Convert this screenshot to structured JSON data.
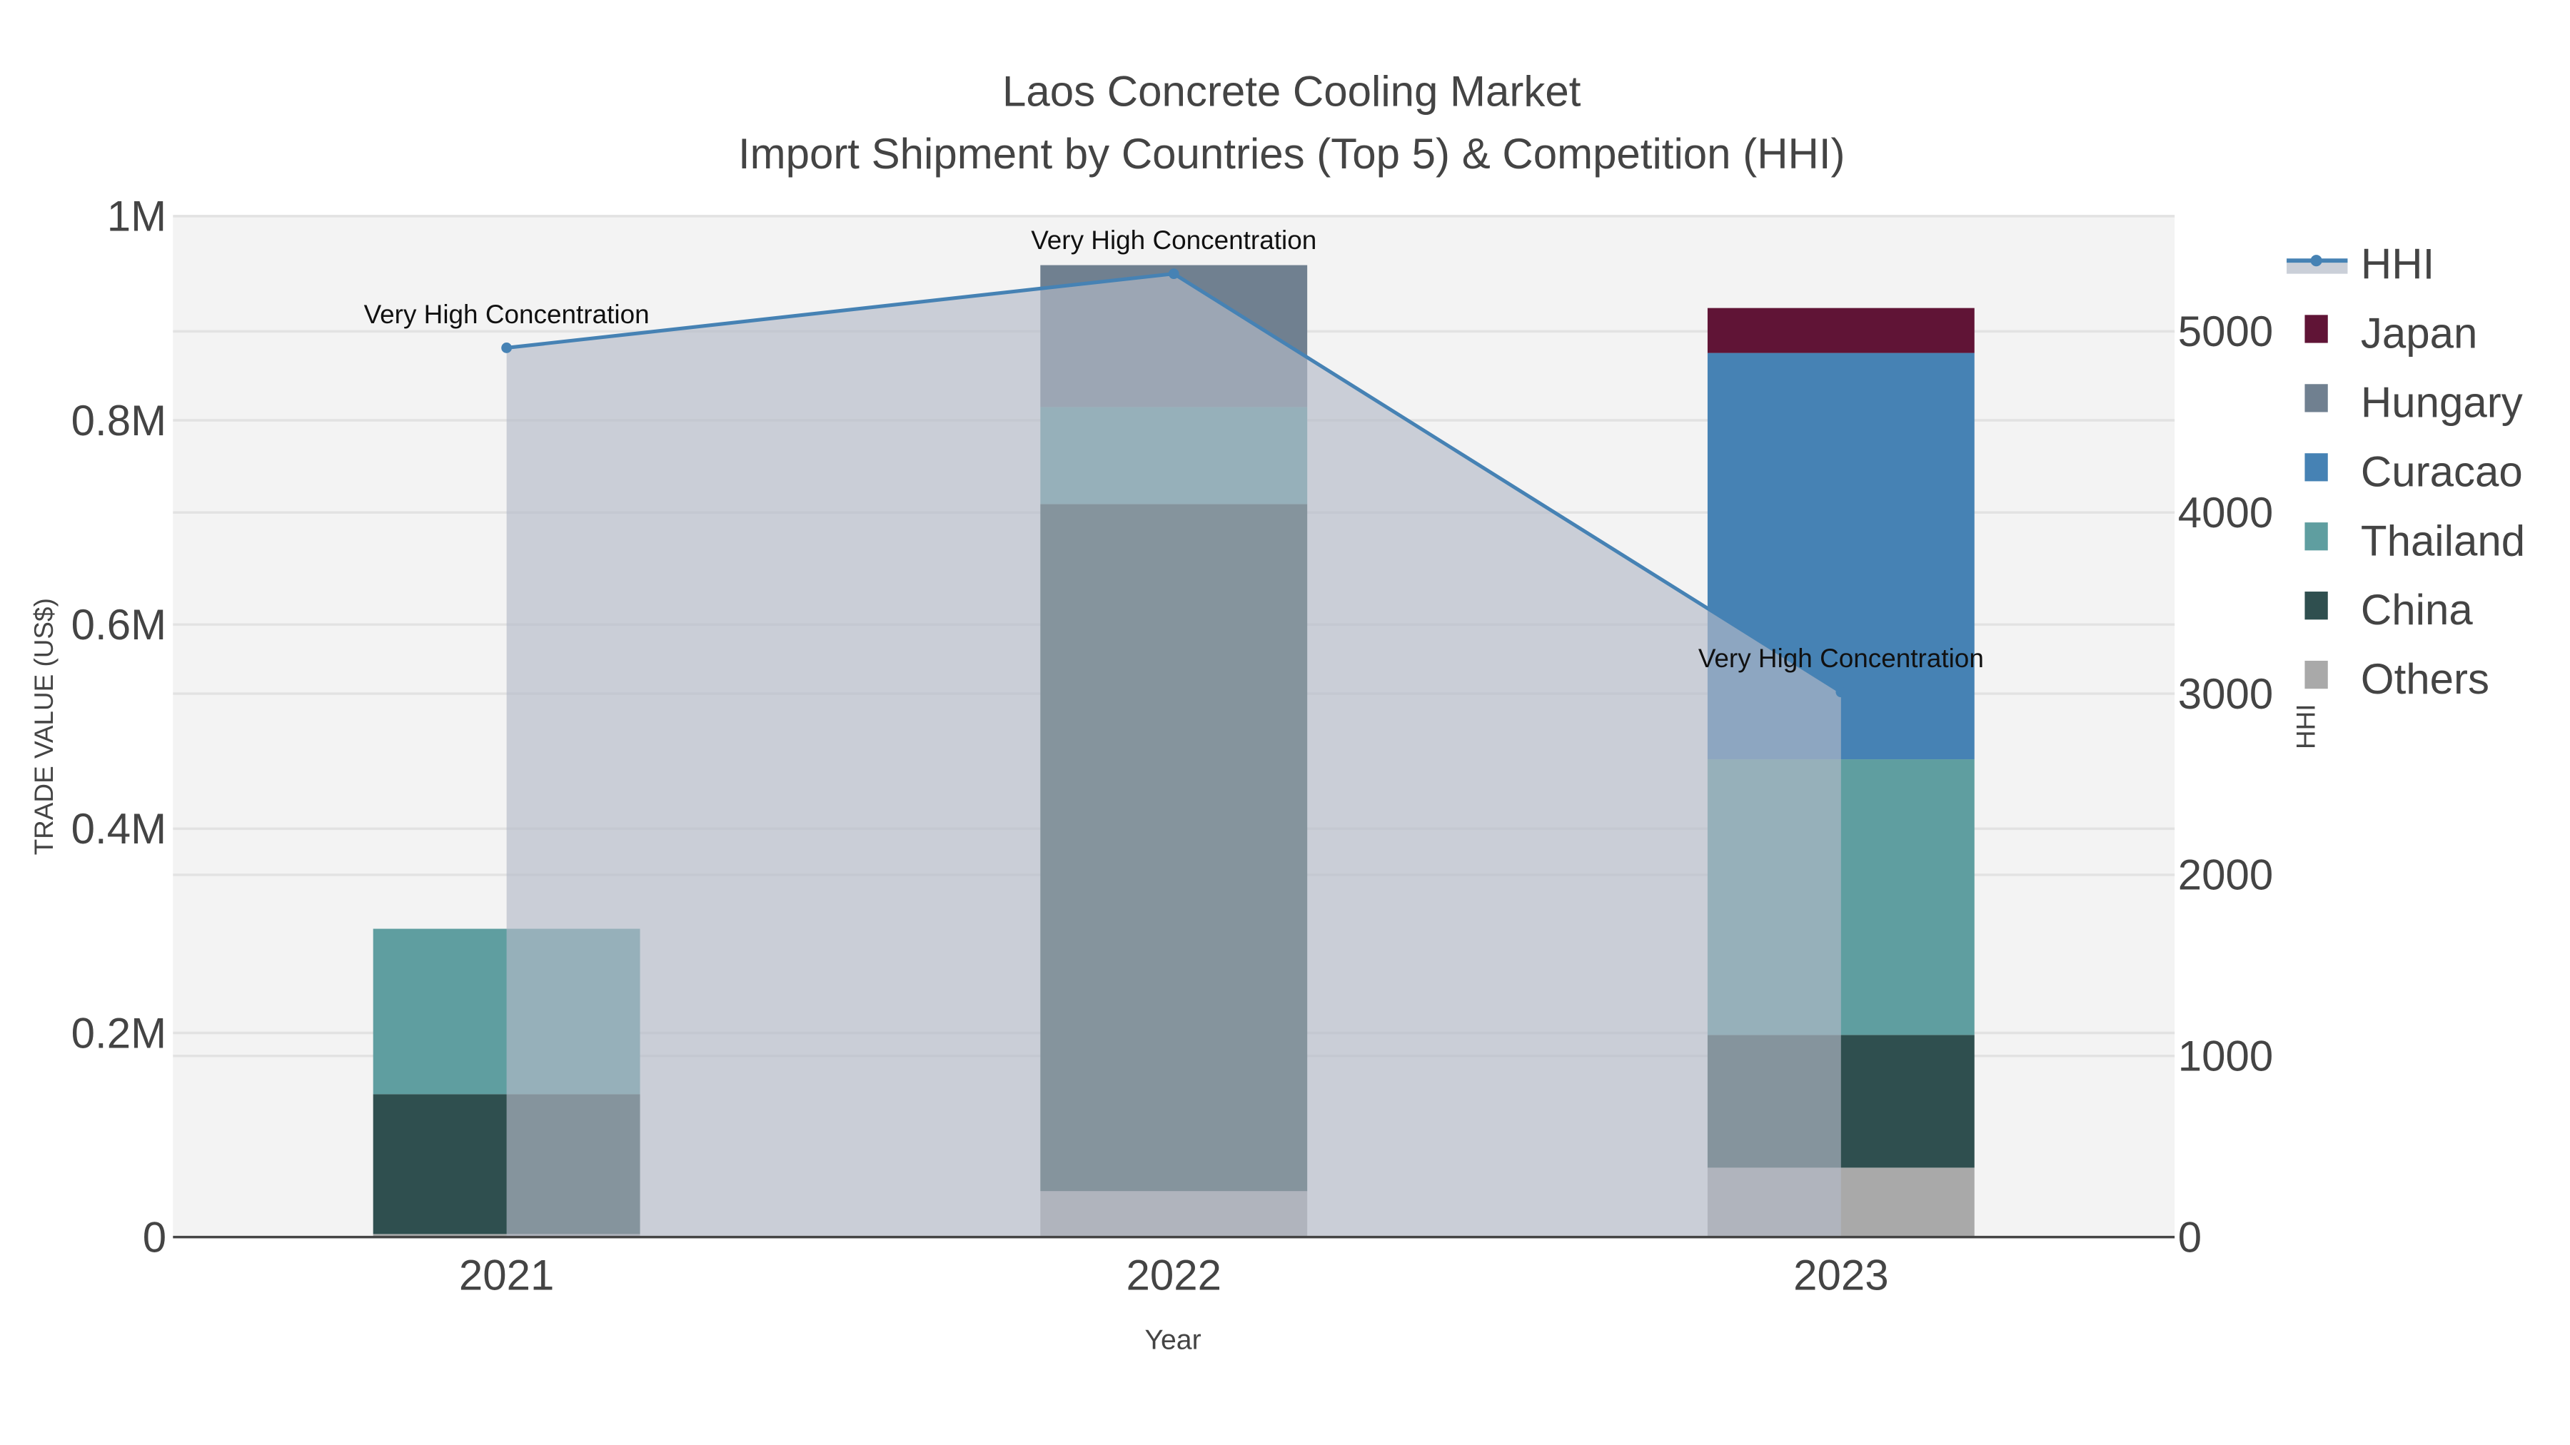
{
  "chart_data": {
    "type": "bar",
    "title": "Laos Concrete Cooling Market",
    "subtitle": "Import Shipment by Countries (Top 5) & Competition (HHI)",
    "xlabel": "Year",
    "ylabel": "TRADE VALUE (US$)",
    "y2label": "HHI",
    "categories": [
      "2021",
      "2022",
      "2023"
    ],
    "ylim": [
      0,
      1000000
    ],
    "y2lim": [
      0,
      5636
    ],
    "yticks": [
      {
        "v": 0,
        "label": "0"
      },
      {
        "v": 200000,
        "label": "0.2M"
      },
      {
        "v": 400000,
        "label": "0.4M"
      },
      {
        "v": 600000,
        "label": "0.6M"
      },
      {
        "v": 800000,
        "label": "0.8M"
      },
      {
        "v": 1000000,
        "label": "1M"
      }
    ],
    "y2ticks": [
      {
        "v": 0,
        "label": "0"
      },
      {
        "v": 1000,
        "label": "1000"
      },
      {
        "v": 2000,
        "label": "2000"
      },
      {
        "v": 3000,
        "label": "3000"
      },
      {
        "v": 4000,
        "label": "4000"
      },
      {
        "v": 5000,
        "label": "5000"
      }
    ],
    "series": [
      {
        "name": "Others",
        "color": "#a9a9a9",
        "values": [
          3000,
          45000,
          68000
        ]
      },
      {
        "name": "China",
        "color": "#2f4f4f",
        "values": [
          137000,
          673000,
          130000
        ]
      },
      {
        "name": "Thailand",
        "color": "#5f9ea0",
        "values": [
          162000,
          95000,
          270000
        ]
      },
      {
        "name": "Curacao",
        "color": "#4682b4",
        "values": [
          0,
          0,
          398000
        ]
      },
      {
        "name": "Hungary",
        "color": "#708090",
        "values": [
          0,
          139000,
          0
        ]
      },
      {
        "name": "Japan",
        "color": "#601436",
        "values": [
          0,
          0,
          44000
        ]
      }
    ],
    "hhi": {
      "name": "HHI",
      "color": "#4682b4",
      "values": [
        4909,
        5318,
        3009
      ],
      "annotations": [
        "Very High Concentration",
        "Very High Concentration",
        "Very High Concentration"
      ]
    },
    "legend_order": [
      "HHI",
      "Japan",
      "Hungary",
      "Curacao",
      "Thailand",
      "China",
      "Others"
    ],
    "legend_placement": "right",
    "grid": true
  }
}
